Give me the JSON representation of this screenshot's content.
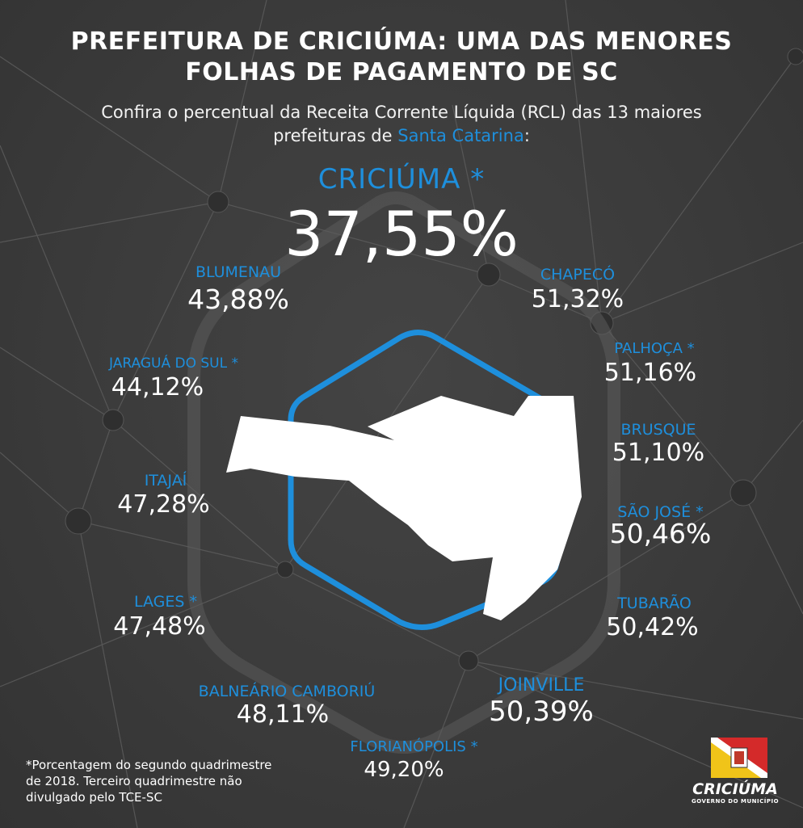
{
  "header": {
    "title_line1": "PREFEITURA DE CRICIÚMA: UMA DAS MENORES",
    "title_line2": "FOLHAS DE PAGAMENTO DE SC",
    "subtitle_line1": "Confira o percentual da Receita Corrente Líquida (RCL) das 13 maiores",
    "subtitle_pre": "prefeituras de ",
    "subtitle_link": "Santa Catarina",
    "subtitle_post": ":"
  },
  "highlight": {
    "city": "CRICIÚMA *",
    "percent": "37,55%"
  },
  "cities": [
    {
      "id": "blumenau",
      "city": "BLUMENAU",
      "percent": "43,88%"
    },
    {
      "id": "chapeco",
      "city": "CHAPECÓ",
      "percent": "51,32%"
    },
    {
      "id": "jaragua",
      "city": "JARAGUÁ DO SUL *",
      "percent": "44,12%"
    },
    {
      "id": "palhoca",
      "city": "PALHOÇA *",
      "percent": "51,16%"
    },
    {
      "id": "brusque",
      "city": "BRUSQUE",
      "percent": "51,10%"
    },
    {
      "id": "itajai",
      "city": "ITAJAÍ",
      "percent": "47,28%"
    },
    {
      "id": "saojose",
      "city": "SÃO JOSÉ *",
      "percent": "50,46%"
    },
    {
      "id": "lages",
      "city": "LAGES *",
      "percent": "47,48%"
    },
    {
      "id": "tubarao",
      "city": "TUBARÃO",
      "percent": "50,42%"
    },
    {
      "id": "balneario",
      "city": "BALNEÁRIO CAMBORIÚ",
      "percent": "48,11%"
    },
    {
      "id": "joinville",
      "city": "JOINVILLE",
      "percent": "50,39%"
    },
    {
      "id": "florianopolis",
      "city": "FLORIANÓPOLIS *",
      "percent": "49,20%"
    }
  ],
  "footnote": {
    "line1": "*Porcentagem do segundo quadrimestre",
    "line2": "de 2018. Terceiro quadrimestre não",
    "line3": "divulgado pelo TCE-SC"
  },
  "logo": {
    "name": "CRICIÚMA",
    "tagline": "GOVERNO DO MUNICÍPIO"
  },
  "colors": {
    "accent": "#1e8fdc",
    "background": "#3a3a3a",
    "text": "#ffffff"
  }
}
